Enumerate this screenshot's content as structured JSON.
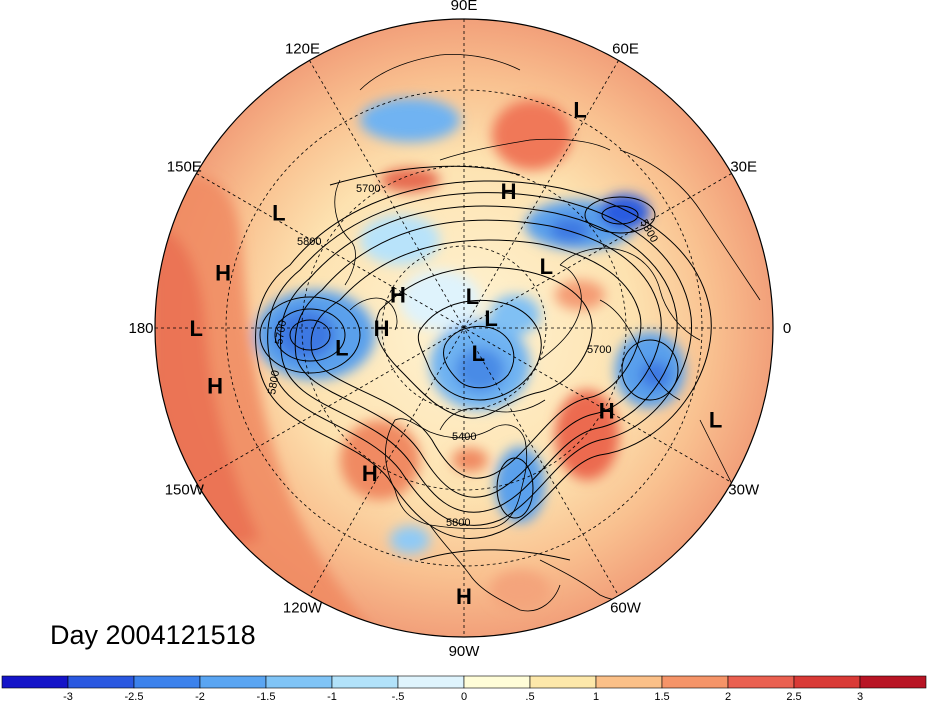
{
  "title": "Day 2004121518",
  "map": {
    "projection": "north-polar-stereographic",
    "lon_labels": [
      {
        "text": "90E",
        "lon": 90
      },
      {
        "text": "60E",
        "lon": 60
      },
      {
        "text": "30E",
        "lon": 30
      },
      {
        "text": "0",
        "lon": 0
      },
      {
        "text": "30W",
        "lon": -30
      },
      {
        "text": "60W",
        "lon": -60
      },
      {
        "text": "90W",
        "lon": -90
      },
      {
        "text": "120W",
        "lon": -120
      },
      {
        "text": "150W",
        "lon": -150
      },
      {
        "text": "180",
        "lon": 180
      },
      {
        "text": "150E",
        "lon": 150
      },
      {
        "text": "120E",
        "lon": 120
      }
    ],
    "contour_labels": [
      "5700",
      "5800",
      "5700",
      "5800",
      "5800",
      "5700",
      "5400",
      "5800"
    ],
    "pressure_centers": [
      {
        "type": "L",
        "lon": 62,
        "lat": 30
      },
      {
        "type": "H",
        "lon": 72,
        "lat": 55
      },
      {
        "type": "L",
        "lon": 148,
        "lat": 37
      },
      {
        "type": "H",
        "lon": 167,
        "lat": 30
      },
      {
        "type": "L",
        "lon": 180,
        "lat": 25
      },
      {
        "type": "H",
        "lon": -167,
        "lat": 28
      },
      {
        "type": "L",
        "lon": 37,
        "lat": 65
      },
      {
        "type": "L",
        "lon": 75,
        "lat": 82
      },
      {
        "type": "H",
        "lon": 153,
        "lat": 72
      },
      {
        "type": "H",
        "lon": 180,
        "lat": 70
      },
      {
        "type": "L",
        "lon": -171,
        "lat": 60
      },
      {
        "type": "L",
        "lon": 20,
        "lat": 83
      },
      {
        "type": "L",
        "lon": -60,
        "lat": 83
      },
      {
        "type": "H",
        "lon": -30,
        "lat": 50
      },
      {
        "type": "H",
        "lon": -123,
        "lat": 48
      },
      {
        "type": "L",
        "lon": -20,
        "lat": 25
      },
      {
        "type": "H",
        "lon": -90,
        "lat": 25
      }
    ]
  },
  "colorbar": {
    "tick_labels": [
      "-3",
      "-2.5",
      "-2",
      "-1.5",
      "-1",
      "-.5",
      "0",
      ".5",
      "1",
      "1.5",
      "2",
      "2.5",
      "3"
    ],
    "colors": [
      "#1414c8",
      "#2a58e0",
      "#3c82ec",
      "#5aa5f2",
      "#80c4f6",
      "#b2e2fa",
      "#dff4fd",
      "#fffdd8",
      "#fde8aa",
      "#fbc088",
      "#f59468",
      "#ea6050",
      "#d93a36",
      "#b81424"
    ]
  }
}
